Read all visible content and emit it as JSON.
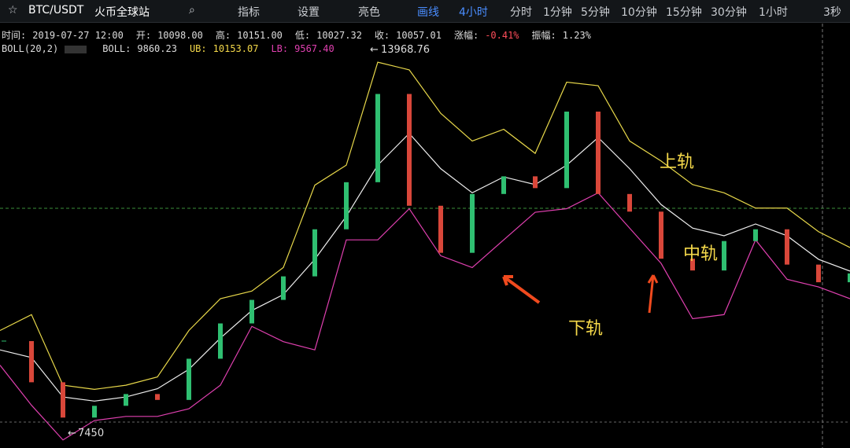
{
  "toolbar": {
    "pair": "BTC/USDT",
    "exchange": "火币全球站",
    "tools": [
      "指标",
      "设置",
      "亮色",
      "画线"
    ],
    "active_period": "4小时",
    "periods": [
      "分时",
      "1分钟",
      "5分钟",
      "10分钟",
      "15分钟",
      "30分钟",
      "1小时"
    ],
    "right": "3秒"
  },
  "info": {
    "row1": [
      {
        "label": "时间:",
        "value": "2019-07-27 12:00"
      },
      {
        "label": "开:",
        "value": "10098.00"
      },
      {
        "label": "高:",
        "value": "10151.00"
      },
      {
        "label": "低:",
        "value": "10027.32"
      },
      {
        "label": "收:",
        "value": "10057.01"
      },
      {
        "label": "涨幅:",
        "value": "-0.41%"
      },
      {
        "label": "振幅:",
        "value": "1.23%"
      }
    ],
    "row2": [
      {
        "label": "BOLL(20,2)",
        "value": ""
      },
      {
        "label": "BOLL:",
        "value": "9860.23"
      },
      {
        "label": "UB:",
        "value": "10153.07"
      },
      {
        "label": "LB:",
        "value": "9567.40"
      }
    ]
  },
  "chart": {
    "high": 13968.76,
    "low": 7450,
    "closes": [
      9000,
      8300,
      7700,
      7900,
      8100,
      8000,
      8700,
      9300,
      9700,
      10100,
      10900,
      11700,
      13200,
      11300,
      10500,
      11500,
      11800,
      11600,
      12900,
      11500,
      11200,
      10400,
      10200,
      10700,
      10900,
      10300,
      10000,
      10150
    ],
    "upper": [
      9180,
      9450,
      8250,
      8180,
      8250,
      8390,
      9180,
      9720,
      9850,
      10250,
      11650,
      11990,
      13740,
      13610,
      12870,
      12400,
      12600,
      12190,
      13400,
      13340,
      12400,
      12060,
      11660,
      11520,
      11260,
      11260,
      10860,
      10590
    ],
    "middle": [
      8850,
      8720,
      8050,
      7980,
      8050,
      8190,
      8520,
      9050,
      9520,
      9790,
      10390,
      11120,
      11990,
      12530,
      11930,
      11520,
      11790,
      11660,
      11990,
      12460,
      11930,
      11320,
      10920,
      10790,
      10990,
      10790,
      10390,
      10190
    ],
    "lower": [
      8590,
      7910,
      7320,
      7650,
      7720,
      7720,
      7850,
      8250,
      9250,
      8990,
      8850,
      10720,
      10720,
      11250,
      10450,
      10250,
      10720,
      11190,
      11250,
      11520,
      10920,
      10320,
      9380,
      9450,
      10720,
      10050,
      9920,
      9720
    ],
    "annotations": [
      "上轨",
      "中轨",
      "下轨"
    ]
  }
}
